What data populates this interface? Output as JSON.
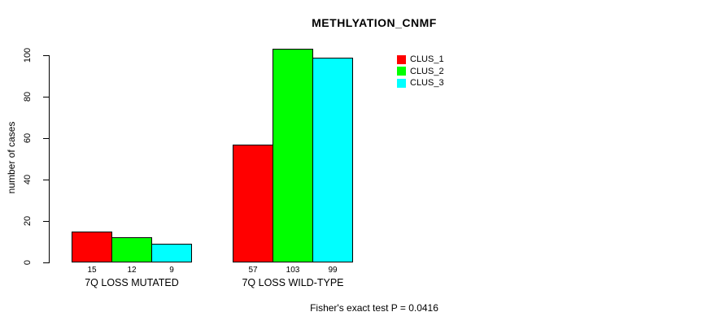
{
  "title": "METHLYATION_CNMF",
  "chart_data": {
    "type": "bar",
    "title": "METHLYATION_CNMF",
    "xlabel": "",
    "ylabel": "number of cases",
    "categories": [
      "7Q LOSS MUTATED",
      "7Q LOSS WILD-TYPE"
    ],
    "series": [
      {
        "name": "CLUS_1",
        "color": "#FF0000",
        "values": [
          15,
          57
        ]
      },
      {
        "name": "CLUS_2",
        "color": "#00FF00",
        "values": [
          12,
          103
        ]
      },
      {
        "name": "CLUS_3",
        "color": "#00FFFF",
        "values": [
          9,
          99
        ]
      }
    ],
    "bar_value_labels_shown": true,
    "yticks": [
      0,
      20,
      40,
      60,
      80,
      100
    ],
    "ylim": [
      0,
      105
    ],
    "grid": false,
    "legend_position": "top-right-inside",
    "annotation": "Fisher's exact test P = 0.0416"
  },
  "colors": {
    "background": "#FFFFFF",
    "axis": "#000000",
    "text": "#000000",
    "bar_border": "#000000"
  }
}
